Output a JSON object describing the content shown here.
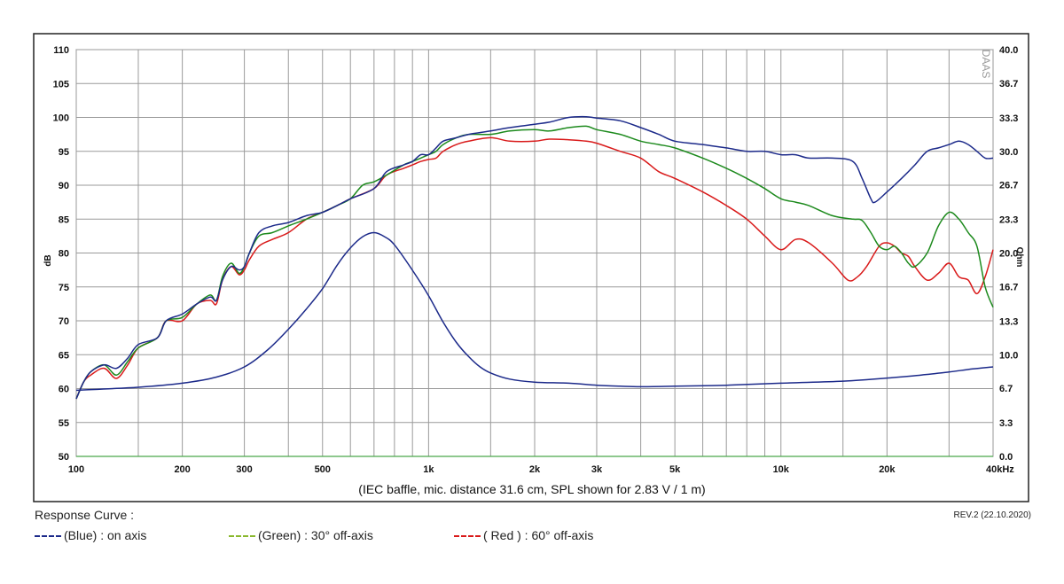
{
  "chart_data": {
    "type": "line",
    "caption": "(IEC baffle, mic. distance 31.6 cm, SPL shown for 2.83 V / 1 m)",
    "ylabel_left": "dB",
    "ylabel_right": "Ohm",
    "x_scale": "log",
    "xlim": [
      100,
      40000
    ],
    "ylim_left": [
      50,
      110
    ],
    "ylim_right": [
      0,
      40
    ],
    "grid": true,
    "x_ticks": [
      {
        "value": 100,
        "label": "100"
      },
      {
        "value": 200,
        "label": "200"
      },
      {
        "value": 300,
        "label": "300"
      },
      {
        "value": 500,
        "label": "500"
      },
      {
        "value": 1000,
        "label": "1k"
      },
      {
        "value": 2000,
        "label": "2k"
      },
      {
        "value": 3000,
        "label": "3k"
      },
      {
        "value": 5000,
        "label": "5k"
      },
      {
        "value": 10000,
        "label": "10k"
      },
      {
        "value": 20000,
        "label": "20k"
      },
      {
        "value": 40000,
        "label": "40kHz"
      }
    ],
    "x_minor_gridlines": [
      150,
      400,
      600,
      700,
      800,
      900,
      1500,
      4000,
      6000,
      7000,
      8000,
      9000,
      15000,
      30000
    ],
    "y_ticks_left": [
      {
        "value": 110,
        "label": "110"
      },
      {
        "value": 105,
        "label": "105"
      },
      {
        "value": 100,
        "label": "100"
      },
      {
        "value": 95,
        "label": "95"
      },
      {
        "value": 90,
        "label": "90"
      },
      {
        "value": 85,
        "label": "85"
      },
      {
        "value": 80,
        "label": "80"
      },
      {
        "value": 75,
        "label": "75"
      },
      {
        "value": 70,
        "label": "70"
      },
      {
        "value": 65,
        "label": "65"
      },
      {
        "value": 60,
        "label": "60"
      },
      {
        "value": 55,
        "label": "55"
      },
      {
        "value": 50,
        "label": "50"
      }
    ],
    "y_ticks_right": [
      {
        "value": 40.0,
        "label": "40.0"
      },
      {
        "value": 36.7,
        "label": "36.7"
      },
      {
        "value": 33.3,
        "label": "33.3"
      },
      {
        "value": 30.0,
        "label": "30.0"
      },
      {
        "value": 26.7,
        "label": "26.7"
      },
      {
        "value": 23.3,
        "label": "23.3"
      },
      {
        "value": 20.0,
        "label": "20.0"
      },
      {
        "value": 16.7,
        "label": "16.7"
      },
      {
        "value": 13.3,
        "label": "13.3"
      },
      {
        "value": 10.0,
        "label": "10.0"
      },
      {
        "value": 6.7,
        "label": "6.7"
      },
      {
        "value": 3.3,
        "label": "3.3"
      },
      {
        "value": 0.0,
        "label": "0.0"
      }
    ],
    "watermark": "DAAS",
    "series": [
      {
        "name": "on axis",
        "color": "#1c2a8a",
        "axis": "left",
        "points": [
          [
            100,
            58.5
          ],
          [
            105,
            61
          ],
          [
            110,
            62.5
          ],
          [
            120,
            63.5
          ],
          [
            130,
            63
          ],
          [
            140,
            64.5
          ],
          [
            150,
            66.5
          ],
          [
            170,
            67.5
          ],
          [
            180,
            70
          ],
          [
            200,
            71
          ],
          [
            220,
            72.5
          ],
          [
            240,
            73.5
          ],
          [
            250,
            73
          ],
          [
            260,
            76
          ],
          [
            275,
            78
          ],
          [
            290,
            77.5
          ],
          [
            300,
            78
          ],
          [
            310,
            80
          ],
          [
            330,
            83
          ],
          [
            360,
            84
          ],
          [
            400,
            84.5
          ],
          [
            450,
            85.5
          ],
          [
            500,
            86
          ],
          [
            550,
            87
          ],
          [
            600,
            88
          ],
          [
            700,
            89.5
          ],
          [
            760,
            92
          ],
          [
            850,
            93
          ],
          [
            900,
            93.5
          ],
          [
            950,
            94.5
          ],
          [
            1000,
            94.5
          ],
          [
            1050,
            95.5
          ],
          [
            1100,
            96.5
          ],
          [
            1200,
            97
          ],
          [
            1300,
            97.5
          ],
          [
            1500,
            98
          ],
          [
            1700,
            98.5
          ],
          [
            2000,
            99
          ],
          [
            2200,
            99.3
          ],
          [
            2500,
            100
          ],
          [
            2800,
            100.1
          ],
          [
            3000,
            99.9
          ],
          [
            3500,
            99.5
          ],
          [
            4000,
            98.5
          ],
          [
            4500,
            97.5
          ],
          [
            5000,
            96.5
          ],
          [
            6000,
            96
          ],
          [
            7000,
            95.5
          ],
          [
            8000,
            95
          ],
          [
            9000,
            95
          ],
          [
            10000,
            94.5
          ],
          [
            11000,
            94.5
          ],
          [
            12000,
            94
          ],
          [
            14000,
            94
          ],
          [
            16000,
            93.5
          ],
          [
            17000,
            91
          ],
          [
            18000,
            88
          ],
          [
            18500,
            87.5
          ],
          [
            20000,
            89
          ],
          [
            22000,
            91
          ],
          [
            24000,
            93
          ],
          [
            26000,
            95
          ],
          [
            28000,
            95.5
          ],
          [
            30000,
            96
          ],
          [
            32000,
            96.5
          ],
          [
            34000,
            96
          ],
          [
            36000,
            95
          ],
          [
            38000,
            94
          ],
          [
            40000,
            94
          ]
        ]
      },
      {
        "name": "30° off-axis",
        "color": "#1d8a1d",
        "axis": "left",
        "points": [
          [
            100,
            58.5
          ],
          [
            105,
            61
          ],
          [
            110,
            62.5
          ],
          [
            120,
            63.5
          ],
          [
            130,
            62
          ],
          [
            140,
            64
          ],
          [
            150,
            66
          ],
          [
            170,
            67.5
          ],
          [
            180,
            70
          ],
          [
            200,
            70.5
          ],
          [
            220,
            72.5
          ],
          [
            240,
            73.8
          ],
          [
            250,
            73
          ],
          [
            260,
            76.5
          ],
          [
            275,
            78.5
          ],
          [
            290,
            77
          ],
          [
            300,
            78
          ],
          [
            310,
            80
          ],
          [
            330,
            82.5
          ],
          [
            360,
            83
          ],
          [
            400,
            84
          ],
          [
            450,
            85
          ],
          [
            500,
            86
          ],
          [
            550,
            87
          ],
          [
            600,
            88
          ],
          [
            650,
            90
          ],
          [
            700,
            90.5
          ],
          [
            760,
            91.5
          ],
          [
            850,
            93
          ],
          [
            900,
            93.5
          ],
          [
            950,
            94
          ],
          [
            1000,
            94.5
          ],
          [
            1050,
            95
          ],
          [
            1100,
            96
          ],
          [
            1200,
            97
          ],
          [
            1300,
            97.5
          ],
          [
            1500,
            97.5
          ],
          [
            1700,
            98
          ],
          [
            2000,
            98.2
          ],
          [
            2200,
            98
          ],
          [
            2500,
            98.5
          ],
          [
            2800,
            98.7
          ],
          [
            3000,
            98.2
          ],
          [
            3500,
            97.5
          ],
          [
            4000,
            96.5
          ],
          [
            4500,
            96
          ],
          [
            5000,
            95.5
          ],
          [
            6000,
            94
          ],
          [
            7000,
            92.5
          ],
          [
            8000,
            91
          ],
          [
            9000,
            89.5
          ],
          [
            10000,
            88
          ],
          [
            11000,
            87.5
          ],
          [
            12000,
            87
          ],
          [
            14000,
            85.5
          ],
          [
            16000,
            85
          ],
          [
            17000,
            84.8
          ],
          [
            18000,
            83
          ],
          [
            19000,
            81
          ],
          [
            20000,
            80.5
          ],
          [
            21000,
            81
          ],
          [
            22000,
            80
          ],
          [
            23000,
            78.5
          ],
          [
            24000,
            78
          ],
          [
            26000,
            80
          ],
          [
            28000,
            84
          ],
          [
            30000,
            86
          ],
          [
            32000,
            85
          ],
          [
            34000,
            83
          ],
          [
            36000,
            81
          ],
          [
            38000,
            75
          ],
          [
            40000,
            72
          ]
        ]
      },
      {
        "name": "60° off-axis",
        "color": "#d91a1a",
        "axis": "left",
        "points": [
          [
            100,
            58.5
          ],
          [
            105,
            61
          ],
          [
            110,
            62
          ],
          [
            120,
            63
          ],
          [
            130,
            61.5
          ],
          [
            140,
            63.5
          ],
          [
            150,
            66
          ],
          [
            170,
            67.5
          ],
          [
            180,
            70
          ],
          [
            200,
            70
          ],
          [
            220,
            72.5
          ],
          [
            240,
            73
          ],
          [
            250,
            72.5
          ],
          [
            260,
            76
          ],
          [
            275,
            78
          ],
          [
            290,
            76.8
          ],
          [
            300,
            77.5
          ],
          [
            310,
            79
          ],
          [
            330,
            81
          ],
          [
            360,
            82
          ],
          [
            400,
            83
          ],
          [
            450,
            85
          ],
          [
            500,
            86
          ],
          [
            550,
            87
          ],
          [
            600,
            88
          ],
          [
            700,
            89.5
          ],
          [
            760,
            91.5
          ],
          [
            850,
            92.5
          ],
          [
            900,
            93
          ],
          [
            950,
            93.5
          ],
          [
            1000,
            93.8
          ],
          [
            1050,
            94
          ],
          [
            1100,
            95
          ],
          [
            1200,
            96
          ],
          [
            1300,
            96.5
          ],
          [
            1500,
            97
          ],
          [
            1700,
            96.5
          ],
          [
            2000,
            96.5
          ],
          [
            2200,
            96.8
          ],
          [
            2500,
            96.7
          ],
          [
            2800,
            96.5
          ],
          [
            3000,
            96.2
          ],
          [
            3500,
            95
          ],
          [
            4000,
            94
          ],
          [
            4500,
            92
          ],
          [
            5000,
            91
          ],
          [
            6000,
            89
          ],
          [
            7000,
            87
          ],
          [
            8000,
            85
          ],
          [
            9000,
            82.5
          ],
          [
            10000,
            80.5
          ],
          [
            11000,
            82
          ],
          [
            12000,
            81.5
          ],
          [
            14000,
            78.5
          ],
          [
            15500,
            76
          ],
          [
            16500,
            76.5
          ],
          [
            17500,
            78
          ],
          [
            19000,
            81
          ],
          [
            20000,
            81.5
          ],
          [
            21000,
            81
          ],
          [
            22000,
            80
          ],
          [
            23000,
            79.5
          ],
          [
            24000,
            78
          ],
          [
            26000,
            76
          ],
          [
            28000,
            77
          ],
          [
            30000,
            78.5
          ],
          [
            32000,
            76.5
          ],
          [
            34000,
            76
          ],
          [
            36000,
            74
          ],
          [
            38000,
            76.5
          ],
          [
            40000,
            80.5
          ]
        ]
      },
      {
        "name": "impedance",
        "color": "#1c2a8a",
        "axis": "right",
        "points": [
          [
            100,
            6.5
          ],
          [
            150,
            6.8
          ],
          [
            200,
            7.2
          ],
          [
            250,
            7.8
          ],
          [
            300,
            8.8
          ],
          [
            350,
            10.5
          ],
          [
            400,
            12.5
          ],
          [
            450,
            14.5
          ],
          [
            500,
            16.5
          ],
          [
            550,
            18.8
          ],
          [
            600,
            20.5
          ],
          [
            650,
            21.6
          ],
          [
            700,
            22
          ],
          [
            750,
            21.6
          ],
          [
            800,
            20.8
          ],
          [
            900,
            18.3
          ],
          [
            1000,
            15.8
          ],
          [
            1100,
            13.2
          ],
          [
            1200,
            11.2
          ],
          [
            1300,
            9.8
          ],
          [
            1400,
            8.8
          ],
          [
            1500,
            8.2
          ],
          [
            1700,
            7.6
          ],
          [
            2000,
            7.3
          ],
          [
            2500,
            7.2
          ],
          [
            3000,
            7.0
          ],
          [
            3500,
            6.9
          ],
          [
            4000,
            6.85
          ],
          [
            5000,
            6.9
          ],
          [
            7000,
            7.0
          ],
          [
            10000,
            7.2
          ],
          [
            15000,
            7.4
          ],
          [
            20000,
            7.7
          ],
          [
            25000,
            8.0
          ],
          [
            30000,
            8.3
          ],
          [
            35000,
            8.6
          ],
          [
            40000,
            8.8
          ]
        ]
      }
    ]
  },
  "legend": {
    "heading": "Response Curve :",
    "items": [
      {
        "label": "(Blue)  : on axis",
        "color": "#1c2a8a"
      },
      {
        "label": "(Green) : 30° off-axis",
        "color": "#8ab82e"
      },
      {
        "label": "( Red ) : 60° off-axis",
        "color": "#d91a1a"
      }
    ]
  },
  "revision": "REV.2 (22.10.2020)"
}
